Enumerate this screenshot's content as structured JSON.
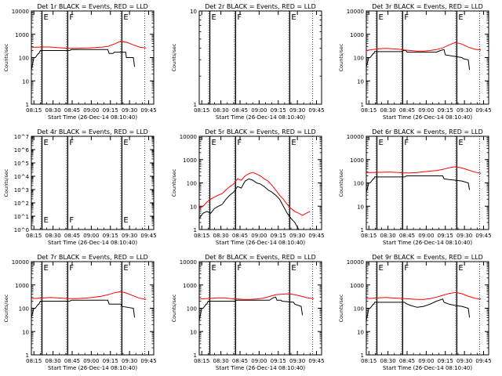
{
  "colors": {
    "events": "#000000",
    "lld": "#ff0000",
    "axis": "#000000",
    "background": "#ffffff"
  },
  "x_tick_labels": [
    "08:15",
    "08:30",
    "08:45",
    "09:00",
    "09:15",
    "09:30",
    "09:45"
  ],
  "x_label": "Start Time (26-Dec-14 08:10:40)",
  "y_label": "Counts/sec",
  "chart_data": [
    {
      "type": "line",
      "title": "Det 1r BLACK = Events, RED = LLD",
      "ylog": true,
      "ylim": [
        1,
        10000
      ],
      "yticks": [
        1,
        10,
        100,
        1000,
        10000
      ],
      "ytick_labels": [
        "1",
        "10",
        "100",
        "1000",
        "10000"
      ],
      "markers": [
        {
          "t": 8.3,
          "label": "E"
        },
        {
          "t": 28.5,
          "label": "F"
        },
        {
          "t": 71.0,
          "label": "E"
        }
      ],
      "dotted_lines": [
        89.0
      ],
      "series": [
        {
          "role": "events",
          "x": [
            0,
            2,
            3,
            5.5,
            6,
            6.5,
            7,
            30,
            31.5,
            60,
            61,
            64,
            65,
            74,
            74.5,
            80,
            81
          ],
          "y": [
            30,
            100,
            100,
            150,
            150,
            180,
            200,
            200,
            220,
            220,
            150,
            150,
            170,
            170,
            100,
            100,
            40
          ]
        },
        {
          "role": "lld",
          "x": [
            0,
            5,
            10,
            15,
            20,
            25,
            30,
            35,
            40,
            45,
            50,
            55,
            60,
            65,
            70,
            75,
            80,
            85,
            90
          ],
          "y": [
            280,
            280,
            285,
            285,
            270,
            260,
            250,
            250,
            255,
            260,
            270,
            280,
            300,
            380,
            500,
            450,
            350,
            280,
            260
          ]
        }
      ]
    },
    {
      "type": "line",
      "title": "Det 2r BLACK = Events, RED = LLD",
      "ylog": true,
      "ylim": [
        1,
        10
      ],
      "yticks": [
        1,
        10
      ],
      "ytick_labels": [
        "1",
        "10"
      ],
      "markers": [
        {
          "t": 8.3,
          "label": "E"
        },
        {
          "t": 28.5,
          "label": "F"
        },
        {
          "t": 71.0,
          "label": "E"
        }
      ],
      "dotted_lines": [
        89.0
      ],
      "series": []
    },
    {
      "type": "line",
      "title": "Det 3r BLACK = Events, RED = LLD",
      "ylog": true,
      "ylim": [
        1,
        10000
      ],
      "yticks": [
        1,
        10,
        100,
        1000,
        10000
      ],
      "ytick_labels": [
        "1",
        "10",
        "100",
        "1000",
        "10000"
      ],
      "markers": [
        {
          "t": 8.3,
          "label": "E"
        },
        {
          "t": 28.5,
          "label": "F"
        },
        {
          "t": 71.0,
          "label": "E"
        }
      ],
      "dotted_lines": [
        89.0
      ],
      "series": [
        {
          "role": "events",
          "x": [
            0,
            2,
            3,
            5.5,
            6,
            6.5,
            7,
            28,
            29,
            31,
            32,
            55,
            58,
            61,
            62,
            75,
            76,
            80,
            81
          ],
          "y": [
            40,
            100,
            100,
            150,
            150,
            180,
            180,
            180,
            200,
            200,
            170,
            170,
            200,
            220,
            130,
            100,
            90,
            80,
            30
          ]
        },
        {
          "role": "lld",
          "x": [
            0,
            5,
            10,
            15,
            20,
            25,
            30,
            35,
            40,
            45,
            50,
            55,
            60,
            65,
            70,
            75,
            80,
            85,
            90
          ],
          "y": [
            200,
            220,
            240,
            250,
            240,
            230,
            210,
            200,
            190,
            190,
            200,
            220,
            260,
            350,
            450,
            380,
            280,
            230,
            210
          ]
        }
      ]
    },
    {
      "type": "line",
      "title": "Det 4r BLACK = Events, RED = LLD",
      "ylog": true,
      "ylim": [
        1,
        10000000
      ],
      "yticks": [
        1,
        10,
        100,
        1000,
        10000,
        100000,
        1000000,
        10000000
      ],
      "ytick_labels": [
        "10^0",
        "10^1",
        "10^2",
        "10^3",
        "10^4",
        "10^5",
        "10^6",
        "10^7"
      ],
      "markers": [
        {
          "t": 8.3,
          "label": "E"
        },
        {
          "t": 28.5,
          "label": "F"
        },
        {
          "t": 71.0,
          "label": "E"
        }
      ],
      "dotted_lines": [
        89.0
      ],
      "series": []
    },
    {
      "type": "line",
      "title": "Det 5r BLACK = Events, RED = LLD",
      "ylog": true,
      "ylim": [
        1,
        10000
      ],
      "yticks": [
        1,
        10,
        100,
        1000,
        10000
      ],
      "ytick_labels": [
        "1",
        "10",
        "100",
        "1000",
        "10000"
      ],
      "markers": [
        {
          "t": 8.3,
          "label": "E"
        },
        {
          "t": 28.5,
          "label": "F"
        },
        {
          "t": 71.0,
          "label": "E"
        }
      ],
      "dotted_lines": [
        89.0
      ],
      "series": [
        {
          "role": "events",
          "x": [
            0,
            3,
            6,
            9,
            12,
            15,
            18,
            21,
            24,
            27,
            30,
            33,
            36,
            39,
            42,
            45,
            48,
            51,
            54,
            57,
            60,
            63,
            66,
            69,
            72,
            75,
            78
          ],
          "y": [
            3,
            5,
            6,
            5,
            8,
            10,
            12,
            20,
            30,
            40,
            70,
            60,
            120,
            150,
            130,
            100,
            90,
            70,
            50,
            40,
            30,
            20,
            10,
            5,
            3,
            2,
            1
          ]
        },
        {
          "role": "lld",
          "x": [
            0,
            3,
            6,
            9,
            12,
            15,
            18,
            21,
            24,
            27,
            30,
            33,
            36,
            39,
            42,
            45,
            48,
            51,
            54,
            57,
            60,
            63,
            66,
            69,
            72,
            75,
            78,
            81,
            84,
            87
          ],
          "y": [
            8,
            10,
            15,
            20,
            25,
            30,
            35,
            50,
            70,
            90,
            150,
            130,
            200,
            250,
            280,
            240,
            200,
            150,
            120,
            80,
            50,
            30,
            20,
            12,
            8,
            6,
            5,
            4,
            5,
            6
          ]
        }
      ]
    },
    {
      "type": "line",
      "title": "Det 6r BLACK = Events, RED = LLD",
      "ylog": true,
      "ylim": [
        1,
        10000
      ],
      "yticks": [
        1,
        10,
        100,
        1000,
        10000
      ],
      "ytick_labels": [
        "1",
        "10",
        "100",
        "1000",
        "10000"
      ],
      "markers": [
        {
          "t": 8.3,
          "label": "E"
        },
        {
          "t": 28.5,
          "label": "F"
        },
        {
          "t": 71.0,
          "label": "E"
        }
      ],
      "dotted_lines": [
        89.0
      ],
      "series": [
        {
          "role": "events",
          "x": [
            0,
            2,
            3,
            5.5,
            6,
            6.5,
            7,
            30,
            31.5,
            60,
            61,
            65,
            70,
            75,
            80,
            81
          ],
          "y": [
            40,
            100,
            100,
            150,
            150,
            180,
            180,
            180,
            200,
            200,
            150,
            140,
            130,
            120,
            100,
            50
          ]
        },
        {
          "role": "lld",
          "x": [
            0,
            5,
            10,
            15,
            20,
            25,
            30,
            35,
            40,
            45,
            50,
            55,
            60,
            65,
            70,
            75,
            80,
            85,
            90
          ],
          "y": [
            280,
            280,
            285,
            290,
            290,
            280,
            270,
            270,
            280,
            300,
            320,
            340,
            380,
            450,
            500,
            440,
            360,
            290,
            260
          ]
        }
      ]
    },
    {
      "type": "line",
      "title": "Det 7r BLACK = Events, RED = LLD",
      "ylog": true,
      "ylim": [
        1,
        10000
      ],
      "yticks": [
        1,
        10,
        100,
        1000,
        10000
      ],
      "ytick_labels": [
        "1",
        "10",
        "100",
        "1000",
        "10000"
      ],
      "markers": [
        {
          "t": 8.3,
          "label": "E"
        },
        {
          "t": 28.5,
          "label": "F"
        },
        {
          "t": 71.0,
          "label": "E"
        }
      ],
      "dotted_lines": [
        89.0
      ],
      "series": [
        {
          "role": "events",
          "x": [
            0,
            2,
            3,
            5.5,
            6,
            6.5,
            7,
            30,
            31.5,
            60,
            61,
            70,
            71,
            80,
            81
          ],
          "y": [
            40,
            100,
            100,
            150,
            150,
            180,
            200,
            200,
            220,
            220,
            150,
            150,
            120,
            100,
            40
          ]
        },
        {
          "role": "lld",
          "x": [
            0,
            5,
            10,
            15,
            20,
            25,
            30,
            35,
            40,
            45,
            50,
            55,
            60,
            65,
            70,
            75,
            80,
            85,
            90
          ],
          "y": [
            260,
            270,
            280,
            290,
            280,
            270,
            260,
            260,
            270,
            280,
            300,
            330,
            380,
            460,
            520,
            440,
            340,
            270,
            240
          ]
        }
      ]
    },
    {
      "type": "line",
      "title": "Det 8r BLACK = Events, RED = LLD",
      "ylog": true,
      "ylim": [
        1,
        10000
      ],
      "yticks": [
        1,
        10,
        100,
        1000,
        10000
      ],
      "ytick_labels": [
        "1",
        "10",
        "100",
        "1000",
        "10000"
      ],
      "markers": [
        {
          "t": 8.3,
          "label": "E"
        },
        {
          "t": 28.5,
          "label": "F"
        },
        {
          "t": 71.0,
          "label": "E"
        }
      ],
      "dotted_lines": [
        89.0
      ],
      "series": [
        {
          "role": "events",
          "x": [
            0,
            2,
            3,
            5.5,
            6,
            6.5,
            7,
            28,
            29,
            55,
            58,
            60,
            61,
            64,
            65,
            74,
            75,
            80,
            81
          ],
          "y": [
            30,
            100,
            100,
            150,
            150,
            180,
            200,
            200,
            220,
            220,
            280,
            300,
            220,
            220,
            200,
            180,
            150,
            120,
            50
          ]
        },
        {
          "role": "lld",
          "x": [
            0,
            5,
            10,
            15,
            20,
            25,
            30,
            35,
            40,
            45,
            50,
            55,
            60,
            65,
            70,
            75,
            80,
            85,
            90
          ],
          "y": [
            250,
            260,
            270,
            280,
            280,
            260,
            250,
            240,
            240,
            250,
            270,
            320,
            380,
            400,
            420,
            380,
            330,
            280,
            260
          ]
        }
      ]
    },
    {
      "type": "line",
      "title": "Det 9r BLACK = Events, RED = LLD",
      "ylog": true,
      "ylim": [
        1,
        10000
      ],
      "yticks": [
        1,
        10,
        100,
        1000,
        10000
      ],
      "ytick_labels": [
        "1",
        "10",
        "100",
        "1000",
        "10000"
      ],
      "markers": [
        {
          "t": 8.3,
          "label": "E"
        },
        {
          "t": 28.5,
          "label": "F"
        },
        {
          "t": 71.0,
          "label": "E"
        }
      ],
      "dotted_lines": [
        89.0
      ],
      "series": [
        {
          "role": "events",
          "x": [
            0,
            2,
            3,
            5.5,
            6,
            6.5,
            7,
            30,
            31,
            35,
            40,
            45,
            50,
            55,
            60,
            61,
            65,
            70,
            75,
            80,
            81
          ],
          "y": [
            30,
            100,
            100,
            150,
            150,
            180,
            180,
            180,
            160,
            130,
            110,
            120,
            150,
            200,
            250,
            180,
            150,
            130,
            120,
            100,
            40
          ]
        },
        {
          "role": "lld",
          "x": [
            0,
            5,
            10,
            15,
            20,
            25,
            30,
            35,
            40,
            45,
            50,
            55,
            60,
            65,
            70,
            75,
            80,
            85,
            90
          ],
          "y": [
            260,
            270,
            280,
            290,
            280,
            270,
            260,
            250,
            240,
            240,
            260,
            300,
            360,
            430,
            480,
            420,
            330,
            270,
            250
          ]
        }
      ]
    }
  ]
}
